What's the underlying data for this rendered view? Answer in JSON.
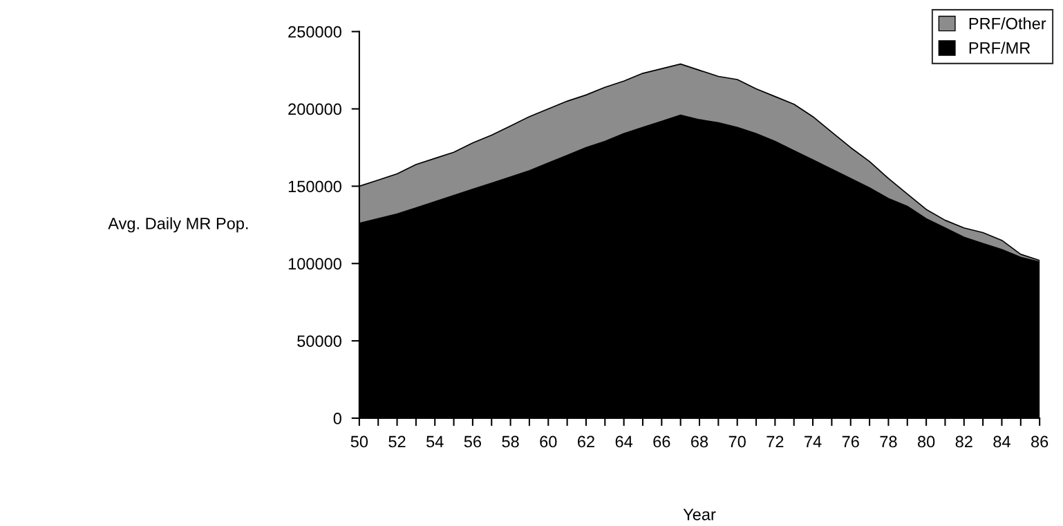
{
  "chart_data": {
    "type": "area",
    "stacked": true,
    "xlabel": "Year",
    "ylabel": "Avg. Daily MR Pop.",
    "x": [
      50,
      51,
      52,
      53,
      54,
      55,
      56,
      57,
      58,
      59,
      60,
      61,
      62,
      63,
      64,
      65,
      66,
      67,
      68,
      69,
      70,
      71,
      72,
      73,
      74,
      75,
      76,
      77,
      78,
      79,
      80,
      81,
      82,
      83,
      84,
      85,
      86
    ],
    "series": [
      {
        "name": "PRF/MR",
        "color": "#000000",
        "values": [
          126000,
          129000,
          132000,
          136000,
          140000,
          144000,
          148000,
          152000,
          156000,
          160000,
          165000,
          170000,
          175000,
          179000,
          184000,
          188000,
          192000,
          196000,
          193000,
          191000,
          188000,
          184000,
          179000,
          173000,
          167000,
          161000,
          155000,
          149000,
          142000,
          137000,
          129000,
          123000,
          117000,
          113000,
          109000,
          104000,
          101000
        ]
      },
      {
        "name": "PRF/Other",
        "color": "#8c8c8c",
        "values": [
          24000,
          25000,
          26000,
          28000,
          28000,
          28000,
          30000,
          31000,
          33000,
          35000,
          35000,
          35000,
          34000,
          35000,
          34000,
          35000,
          34000,
          33000,
          32000,
          30000,
          31000,
          29000,
          29000,
          30000,
          28000,
          24000,
          20000,
          17000,
          13000,
          8000,
          6000,
          5000,
          6000,
          7000,
          6000,
          2000,
          1000
        ]
      }
    ],
    "xlim": [
      50,
      86
    ],
    "xticks": [
      50,
      {
        "value": 51,
        "label": null
      },
      52,
      {
        "value": 53,
        "label": null
      },
      54,
      {
        "value": 55,
        "label": null
      },
      56,
      {
        "value": 57,
        "label": null
      },
      58,
      {
        "value": 59,
        "label": null
      },
      60,
      {
        "value": 61,
        "label": null
      },
      62,
      {
        "value": 63,
        "label": null
      },
      64,
      {
        "value": 65,
        "label": null
      },
      66,
      {
        "value": 67,
        "label": null
      },
      68,
      {
        "value": 69,
        "label": null
      },
      70,
      {
        "value": 71,
        "label": null
      },
      72,
      {
        "value": 73,
        "label": null
      },
      74,
      {
        "value": 75,
        "label": null
      },
      76,
      {
        "value": 77,
        "label": null
      },
      78,
      {
        "value": 79,
        "label": null
      },
      80,
      {
        "value": 81,
        "label": null
      },
      82,
      {
        "value": 83,
        "label": null
      },
      84,
      {
        "value": 85,
        "label": null
      },
      86
    ],
    "ylim": [
      0,
      250000
    ],
    "yticks": [
      0,
      50000,
      100000,
      150000,
      200000,
      250000
    ],
    "grid": false,
    "legend": "top right"
  }
}
